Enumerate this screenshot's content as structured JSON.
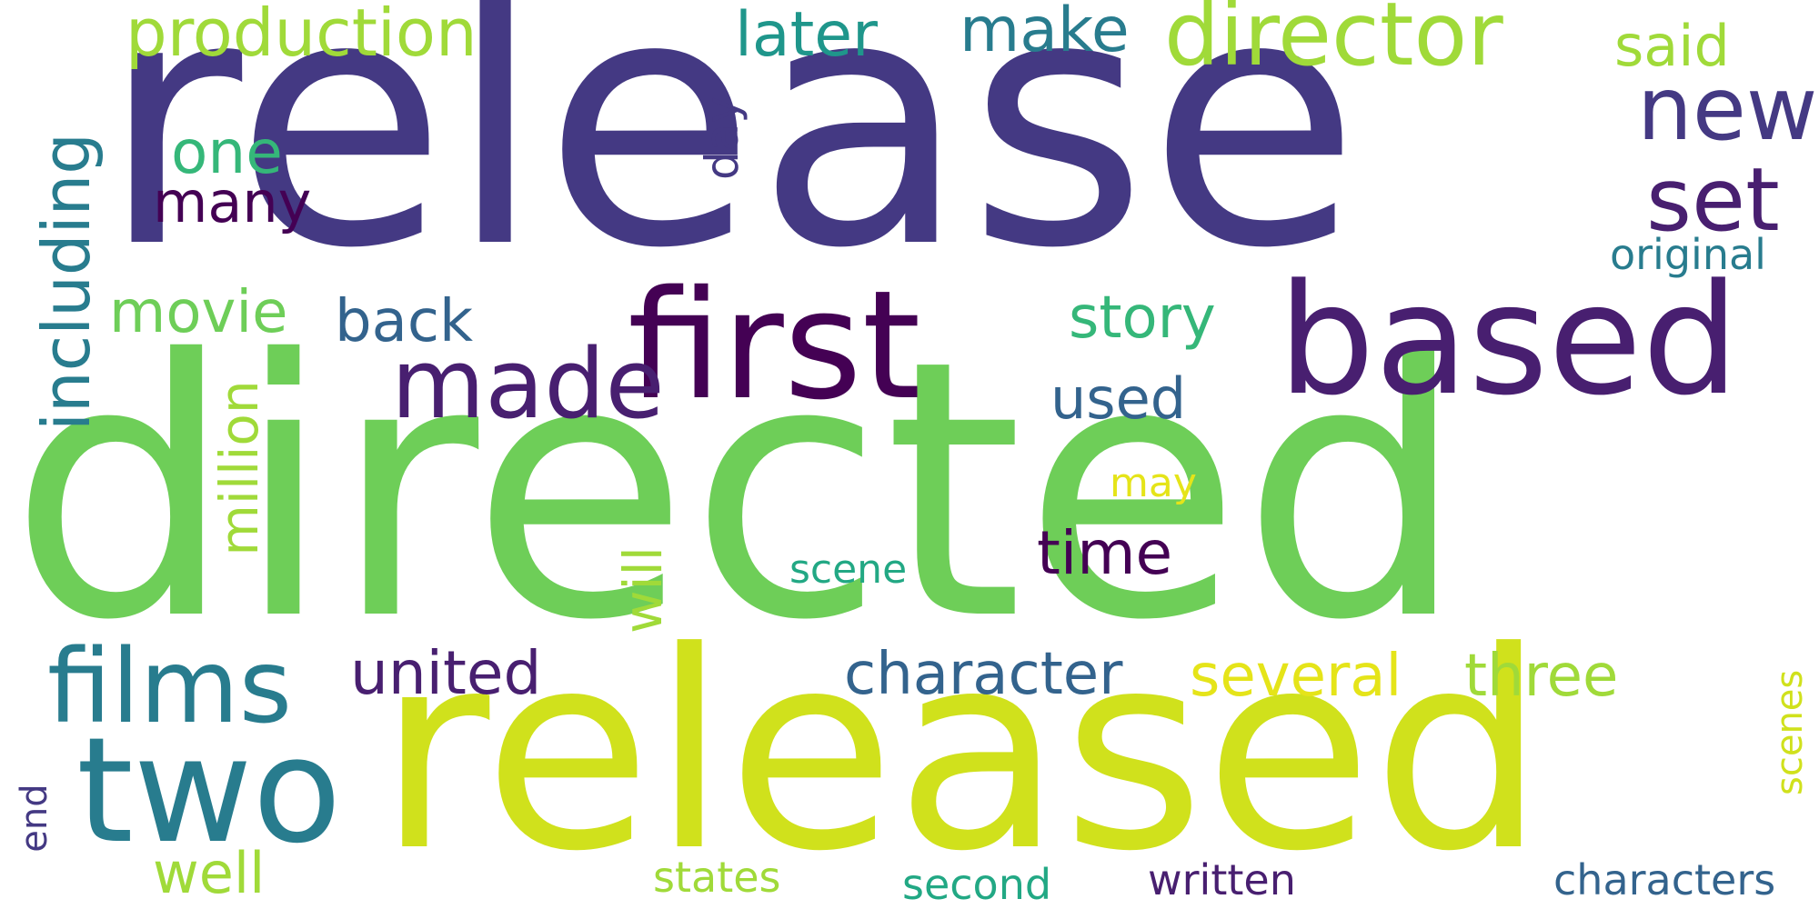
{
  "words": {
    "release": "release",
    "directed": "directed",
    "released": "released",
    "first": "first",
    "based": "based",
    "made": "made",
    "two": "two",
    "films": "films",
    "director": "director",
    "production": "production",
    "new": "new",
    "set": "set",
    "make": "make",
    "later": "later",
    "said": "said",
    "one": "one",
    "many": "many",
    "day": "day",
    "including": "including",
    "movie": "movie",
    "back": "back",
    "story": "story",
    "used": "used",
    "original": "original",
    "million": "million",
    "may": "may",
    "time": "time",
    "scene": "scene",
    "will": "will",
    "united": "united",
    "character": "character",
    "several": "several",
    "three": "three",
    "scenes": "scenes",
    "end": "end",
    "well": "well",
    "states": "states",
    "second": "second",
    "written": "written",
    "characters": "characters"
  }
}
